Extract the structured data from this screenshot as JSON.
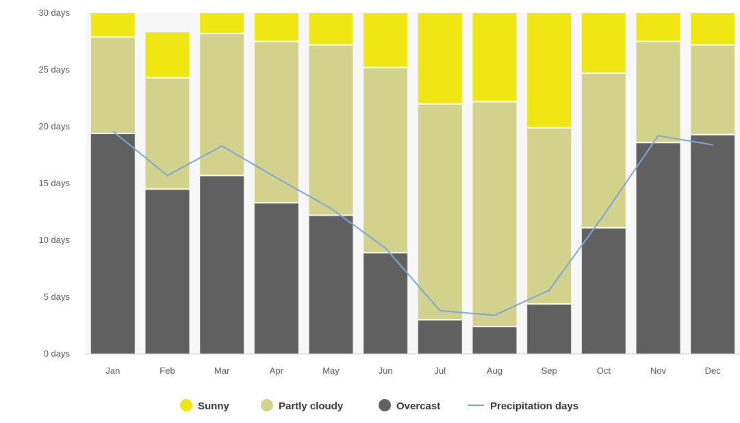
{
  "chart_data": {
    "type": "bar",
    "stacked": true,
    "categories": [
      "Jan",
      "Feb",
      "Mar",
      "Apr",
      "May",
      "Jun",
      "Jul",
      "Aug",
      "Sep",
      "Oct",
      "Nov",
      "Dec"
    ],
    "series": [
      {
        "name": "Overcast",
        "color": "#606060",
        "values": [
          19.4,
          14.5,
          15.7,
          13.3,
          12.2,
          8.9,
          3.0,
          2.4,
          4.4,
          11.1,
          18.6,
          19.3
        ]
      },
      {
        "name": "Partly cloudy",
        "color": "#d2d28c",
        "values": [
          8.5,
          9.8,
          12.5,
          14.2,
          15.0,
          16.3,
          19.0,
          19.8,
          15.5,
          13.6,
          8.9,
          7.9
        ]
      },
      {
        "name": "Sunny",
        "color": "#f0e614",
        "values": [
          2.1,
          4.0,
          1.8,
          2.5,
          2.8,
          4.8,
          8.0,
          7.8,
          10.1,
          5.3,
          2.5,
          2.8
        ]
      }
    ],
    "line_series": {
      "name": "Precipitation days",
      "color": "#7ea6d8",
      "values": [
        19.6,
        15.7,
        18.3,
        15.5,
        12.8,
        9.3,
        3.8,
        3.4,
        5.6,
        12.2,
        19.2,
        18.4
      ]
    },
    "ylim": [
      0,
      30
    ],
    "y_ticks": [
      "0 days",
      "5 days",
      "10 days",
      "15 days",
      "20 days",
      "25 days",
      "30 days"
    ],
    "grid": false,
    "legend_position": "bottom-center",
    "legend_order": [
      "Sunny",
      "Partly cloudy",
      "Overcast",
      "Precipitation days"
    ]
  }
}
